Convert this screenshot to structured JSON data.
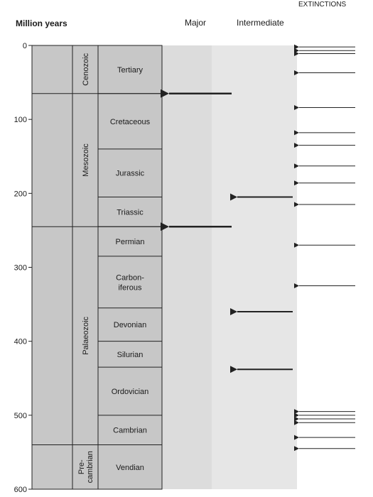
{
  "header": {
    "axis_label": "Million years",
    "major_label": "Major",
    "intermediate_label": "Intermediate",
    "extinctions_label": "EXTINCTIONS"
  },
  "axis": {
    "ticks": [
      0,
      100,
      200,
      300,
      400,
      500,
      600
    ],
    "range": [
      0,
      600
    ]
  },
  "eras": [
    {
      "label": "Cenozoic",
      "start": 0,
      "end": 65
    },
    {
      "label": "Mesozoic",
      "start": 65,
      "end": 245
    },
    {
      "label": "Palaeozoic",
      "start": 245,
      "end": 540
    },
    {
      "label": "Pre-\ncambrian",
      "start": 540,
      "end": 600
    }
  ],
  "periods": [
    {
      "label": "Tertiary",
      "start": 0,
      "end": 65
    },
    {
      "label": "Cretaceous",
      "start": 65,
      "end": 140
    },
    {
      "label": "Jurassic",
      "start": 140,
      "end": 205
    },
    {
      "label": "Triassic",
      "start": 205,
      "end": 245
    },
    {
      "label": "Permian",
      "start": 245,
      "end": 285
    },
    {
      "label": "Carbon-\niferous",
      "start": 285,
      "end": 355
    },
    {
      "label": "Devonian",
      "start": 355,
      "end": 400
    },
    {
      "label": "Silurian",
      "start": 400,
      "end": 435
    },
    {
      "label": "Ordovician",
      "start": 435,
      "end": 500
    },
    {
      "label": "Cambrian",
      "start": 500,
      "end": 540
    },
    {
      "label": "Vendian",
      "start": 540,
      "end": 600
    }
  ],
  "extinctions": {
    "major": [
      65,
      245
    ],
    "intermediate": [
      205,
      360,
      438
    ],
    "minor": [
      2,
      7,
      11,
      37,
      84,
      118,
      135,
      163,
      186,
      215,
      270,
      325,
      495,
      500,
      505,
      510,
      530,
      545
    ]
  },
  "colors": {
    "column_fill": "#c7c7c7",
    "line": "#222222",
    "shade": "#e6e6e6"
  }
}
